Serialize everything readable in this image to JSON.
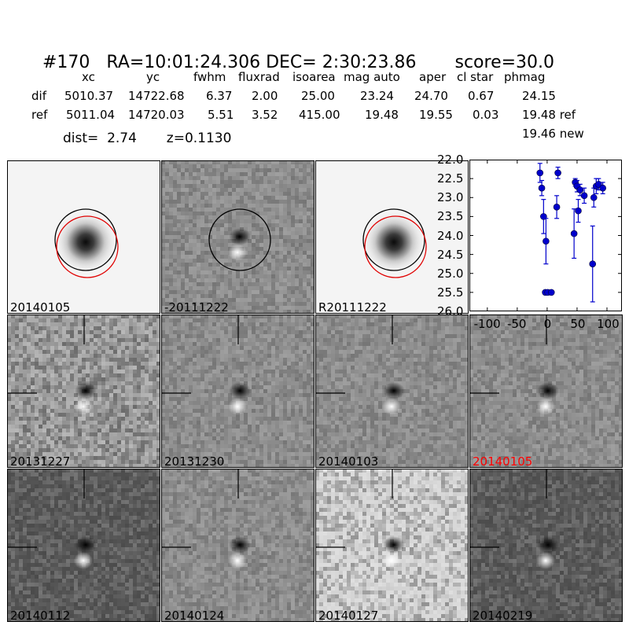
{
  "title": {
    "id": "#170",
    "ra": "RA=10:01:24.306",
    "dec": "DEC= 2:30:23.86",
    "score": "score=30.0"
  },
  "table": {
    "headers": [
      "xc",
      "yc",
      "fwhm",
      "fluxrad",
      "isoarea",
      "mag auto",
      "aper",
      "cl star",
      "phmag"
    ],
    "rows": [
      {
        "label": "dif",
        "values": [
          "5010.37",
          "14722.68",
          "6.37",
          "2.00",
          "25.00",
          "23.24",
          "24.70",
          "0.67",
          "24.15"
        ]
      },
      {
        "label": "ref",
        "values": [
          "5011.04",
          "14720.03",
          "5.51",
          "3.52",
          "415.00",
          "19.48",
          "19.55",
          "0.03",
          "19.48 ref"
        ]
      }
    ],
    "phmag_new": "19.46 new",
    "dist": "dist=  2.74",
    "z": "z=0.1130"
  },
  "panels": [
    {
      "label": "20140105",
      "kind": "galaxy",
      "circles": true,
      "label_color": "#000000"
    },
    {
      "label": "-20111222",
      "kind": "diff",
      "circles": true,
      "label_color": "#000000"
    },
    {
      "label": "R20111222",
      "kind": "galaxy",
      "circles": true,
      "label_color": "#000000"
    },
    {
      "label": "20131227",
      "kind": "noisy",
      "label_color": "#000000"
    },
    {
      "label": "20131230",
      "kind": "diff",
      "label_color": "#000000"
    },
    {
      "label": "20140103",
      "kind": "diff",
      "label_color": "#000000"
    },
    {
      "label": "20140105",
      "kind": "diff",
      "label_color": "#ff0000"
    },
    {
      "label": "20140112",
      "kind": "dark",
      "label_color": "#000000"
    },
    {
      "label": "20140124",
      "kind": "diff",
      "label_color": "#000000"
    },
    {
      "label": "20140127",
      "kind": "light",
      "label_color": "#000000"
    },
    {
      "label": "20140219",
      "kind": "dark",
      "label_color": "#000000"
    }
  ],
  "chart_data": {
    "type": "scatter",
    "x_ticks": [
      "-100",
      "-50",
      "0",
      "50",
      "100"
    ],
    "y_ticks": [
      "22.0",
      "22.5",
      "23.0",
      "23.5",
      "24.0",
      "24.5",
      "25.0",
      "25.5",
      "26.0"
    ],
    "xlim": [
      -130,
      125
    ],
    "ylim": [
      26.0,
      22.0
    ],
    "color": "#0000cc",
    "points": [
      {
        "x": -12,
        "y": 22.35,
        "err": 0.25
      },
      {
        "x": -9,
        "y": 22.75,
        "err": 0.2
      },
      {
        "x": -6,
        "y": 23.5,
        "err": 0.45
      },
      {
        "x": -2,
        "y": 24.15,
        "err": 0.6
      },
      {
        "x": -3,
        "y": 25.5,
        "err": 0
      },
      {
        "x": 1,
        "y": 25.5,
        "err": 0
      },
      {
        "x": 7,
        "y": 25.5,
        "err": 0
      },
      {
        "x": 16,
        "y": 23.25,
        "err": 0.3
      },
      {
        "x": 18,
        "y": 22.35,
        "err": 0.15
      },
      {
        "x": 45,
        "y": 23.95,
        "err": 0.65
      },
      {
        "x": 47,
        "y": 22.6,
        "err": 0.1
      },
      {
        "x": 50,
        "y": 22.7,
        "err": 0.15
      },
      {
        "x": 52,
        "y": 23.35,
        "err": 0.3
      },
      {
        "x": 55,
        "y": 22.8,
        "err": 0.15
      },
      {
        "x": 62,
        "y": 22.95,
        "err": 0.2
      },
      {
        "x": 76,
        "y": 24.75,
        "err": 1.0
      },
      {
        "x": 78,
        "y": 23.0,
        "err": 0.25
      },
      {
        "x": 82,
        "y": 22.7,
        "err": 0.2
      },
      {
        "x": 86,
        "y": 22.65,
        "err": 0.15
      },
      {
        "x": 93,
        "y": 22.75,
        "err": 0.15
      }
    ]
  }
}
